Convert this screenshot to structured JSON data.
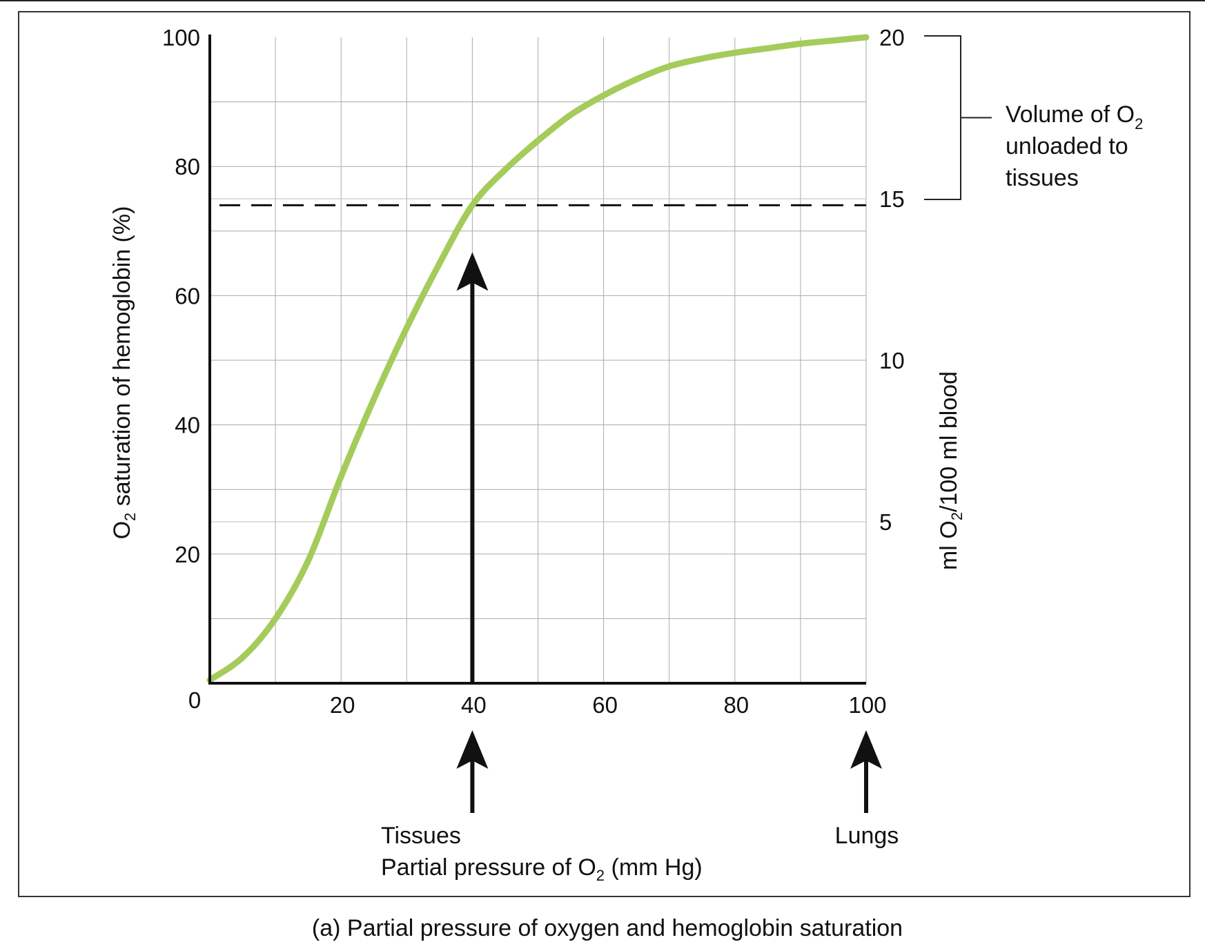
{
  "chart_data": {
    "type": "line",
    "caption": "(a) Partial pressure of oxygen and hemoglobin saturation",
    "xlabel": {
      "pre": "Partial pressure of O",
      "sub": "2",
      "post": " (mm Hg)"
    },
    "ylabel": {
      "pre": "O",
      "sub": "2",
      "post": " saturation of hemoglobin (%)"
    },
    "y2label": {
      "pre": "ml O",
      "sub": "2",
      "post": "/100 ml blood"
    },
    "xlim": [
      0,
      100
    ],
    "ylim": [
      0,
      100
    ],
    "y2lim": [
      0,
      20
    ],
    "x_ticks": [
      "0",
      "20",
      "40",
      "60",
      "80",
      "100"
    ],
    "y_ticks": [
      "20",
      "40",
      "60",
      "80",
      "100"
    ],
    "y2_ticks": [
      "5",
      "10",
      "15",
      "20"
    ],
    "grid": true,
    "curve_color": "#a5cb5b",
    "series": [
      {
        "x": [
          0,
          5,
          10,
          15,
          20,
          25,
          30,
          35,
          40,
          45,
          50,
          55,
          60,
          65,
          70,
          75,
          80,
          85,
          90,
          95,
          100
        ],
        "y": [
          0.5,
          4,
          10,
          19,
          32,
          44,
          55,
          65,
          74,
          79.5,
          84,
          88,
          91,
          93.5,
          95.5,
          96.7,
          97.6,
          98.3,
          99,
          99.5,
          100
        ]
      }
    ],
    "reference_line": {
      "y": 74,
      "style": "dashed"
    },
    "annotations": {
      "tissues": {
        "label": "Tissues",
        "x": 40
      },
      "lungs": {
        "label": "Lungs",
        "x": 100
      },
      "bracket": {
        "from": 15,
        "to": 20,
        "lines": [
          "Volume of O",
          "2",
          "unloaded to",
          "tissues"
        ]
      }
    }
  }
}
